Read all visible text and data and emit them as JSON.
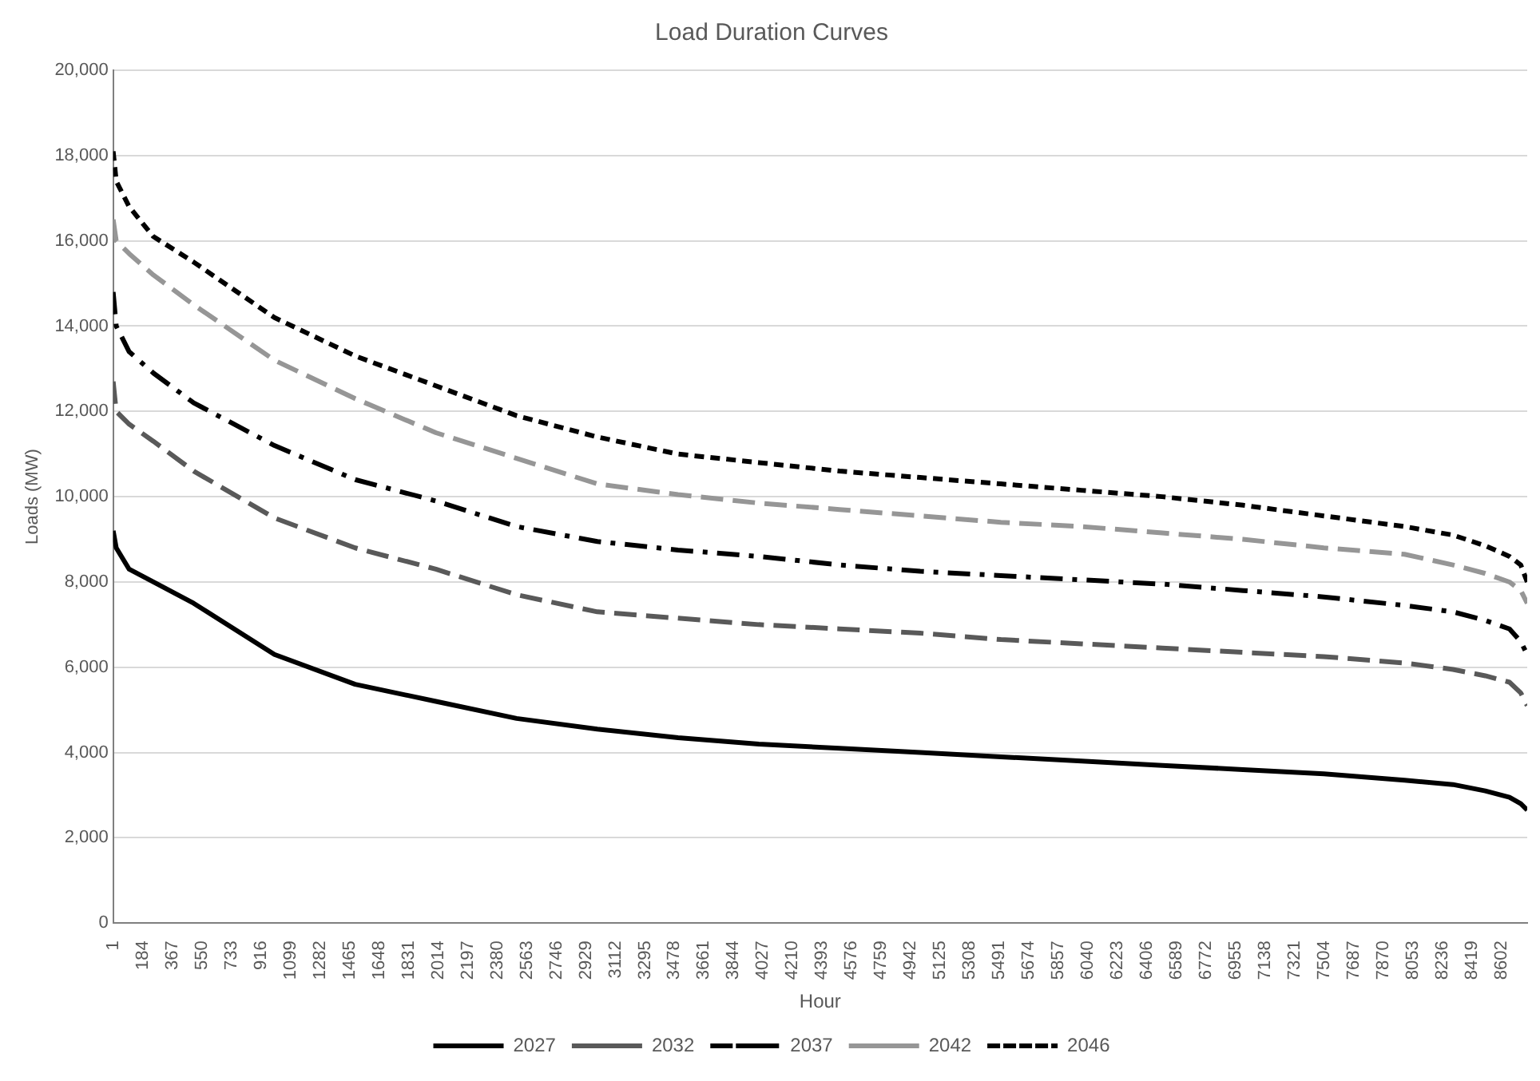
{
  "chart_data": {
    "type": "line",
    "title": "Load Duration Curves",
    "xlabel": "Hour",
    "ylabel": "Loads (MW)",
    "x": [
      1,
      20,
      100,
      250,
      500,
      1000,
      1500,
      2000,
      2500,
      3000,
      3500,
      4000,
      4500,
      5000,
      5500,
      6000,
      6500,
      7000,
      7500,
      8000,
      8300,
      8500,
      8650,
      8720,
      8760
    ],
    "series": [
      {
        "name": "2027",
        "color": "#000000",
        "line_style": "solid",
        "values": [
          9200,
          8800,
          8300,
          8000,
          7500,
          6300,
          5600,
          5200,
          4800,
          4550,
          4350,
          4200,
          4100,
          4000,
          3900,
          3800,
          3700,
          3600,
          3500,
          3350,
          3250,
          3100,
          2950,
          2800,
          2650
        ]
      },
      {
        "name": "2032",
        "color": "#595959",
        "line_style": "dashed",
        "values": [
          12700,
          12000,
          11700,
          11300,
          10600,
          9500,
          8800,
          8300,
          7700,
          7300,
          7150,
          7000,
          6900,
          6800,
          6650,
          6550,
          6450,
          6350,
          6250,
          6100,
          5950,
          5800,
          5650,
          5400,
          5100
        ]
      },
      {
        "name": "2037",
        "color": "#000000",
        "line_style": "dashdot",
        "values": [
          14800,
          14000,
          13400,
          12900,
          12200,
          11200,
          10400,
          9900,
          9300,
          8950,
          8750,
          8600,
          8400,
          8250,
          8150,
          8050,
          7950,
          7800,
          7650,
          7450,
          7300,
          7100,
          6900,
          6600,
          6300
        ]
      },
      {
        "name": "2042",
        "color": "#969696",
        "line_style": "dashed",
        "values": [
          16500,
          16000,
          15700,
          15200,
          14500,
          13200,
          12300,
          11500,
          10900,
          10300,
          10050,
          9850,
          9700,
          9550,
          9400,
          9300,
          9150,
          9000,
          8800,
          8650,
          8400,
          8200,
          8000,
          7800,
          7500
        ]
      },
      {
        "name": "2046",
        "color": "#000000",
        "line_style": "dotted",
        "values": [
          18100,
          17400,
          16800,
          16100,
          15500,
          14200,
          13300,
          12600,
          11900,
          11400,
          11000,
          10800,
          10600,
          10450,
          10300,
          10150,
          10000,
          9800,
          9550,
          9300,
          9100,
          8850,
          8600,
          8400,
          8000
        ]
      }
    ],
    "xlim": [
      1,
      8760
    ],
    "xticks": [
      1,
      184,
      367,
      550,
      733,
      916,
      1099,
      1282,
      1465,
      1648,
      1831,
      2014,
      2197,
      2380,
      2563,
      2746,
      2929,
      3112,
      3295,
      3478,
      3661,
      3844,
      4027,
      4210,
      4393,
      4576,
      4759,
      4942,
      5125,
      5308,
      5491,
      5674,
      5857,
      6040,
      6223,
      6406,
      6589,
      6772,
      6955,
      7138,
      7321,
      7504,
      7687,
      7870,
      8053,
      8236,
      8419,
      8602
    ],
    "ylim": [
      0,
      20000
    ],
    "yticks": [
      0,
      {
        "value": 2000,
        "label": "2,000"
      },
      {
        "value": 4000,
        "label": "4,000"
      },
      {
        "value": 6000,
        "label": "6,000"
      },
      {
        "value": 8000,
        "label": "8,000"
      },
      {
        "value": 10000,
        "label": "10,000"
      },
      {
        "value": 12000,
        "label": "12,000"
      },
      {
        "value": 14000,
        "label": "14,000"
      },
      {
        "value": 16000,
        "label": "16,000"
      },
      {
        "value": 18000,
        "label": "18,000"
      },
      {
        "value": 20000,
        "label": "20,000"
      }
    ],
    "grid": "y",
    "legend": "bottom",
    "marker": "none"
  }
}
